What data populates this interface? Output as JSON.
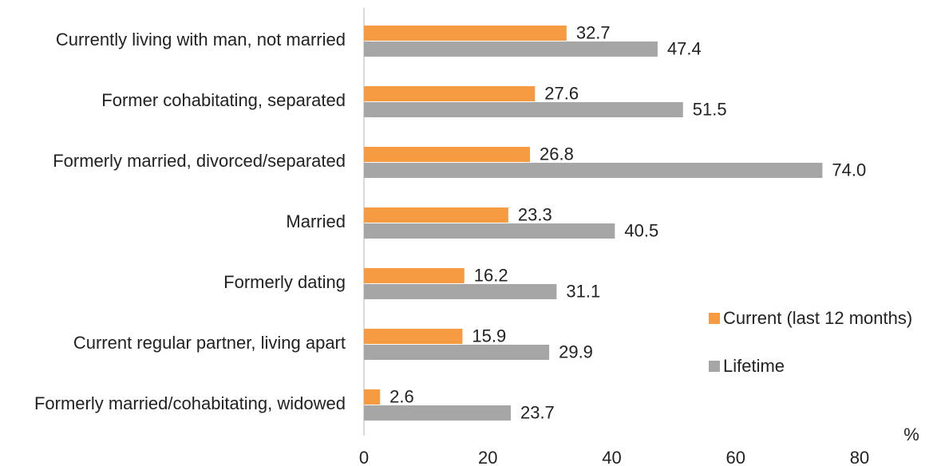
{
  "chart_data": {
    "type": "hbar",
    "categories": [
      "Currently living with man, not married",
      "Former cohabitating, separated",
      "Formerly married, divorced/separated",
      "Married",
      "Formerly dating",
      "Current regular partner, living apart",
      "Formerly married/cohabitating, widowed"
    ],
    "series": [
      {
        "name": "Current (last 12 months)",
        "color": "#f79b43",
        "values": [
          32.7,
          27.6,
          26.8,
          23.3,
          16.2,
          15.9,
          2.6
        ],
        "value_labels": [
          "32.7",
          "27.6",
          "26.8",
          "23.3",
          "16.2",
          "15.9",
          "2.6"
        ]
      },
      {
        "name": "Lifetime",
        "color": "#a6a6a7",
        "values": [
          47.4,
          51.5,
          74.0,
          40.5,
          31.1,
          29.9,
          23.7
        ],
        "value_labels": [
          "47.4",
          "51.5",
          "74.0",
          "40.5",
          "31.1",
          "29.9",
          "23.7"
        ]
      }
    ],
    "x_label": "%",
    "xlim": [
      0,
      80
    ],
    "xticks": [
      0,
      20,
      40,
      60,
      80
    ],
    "grid": false,
    "legend": "right"
  }
}
